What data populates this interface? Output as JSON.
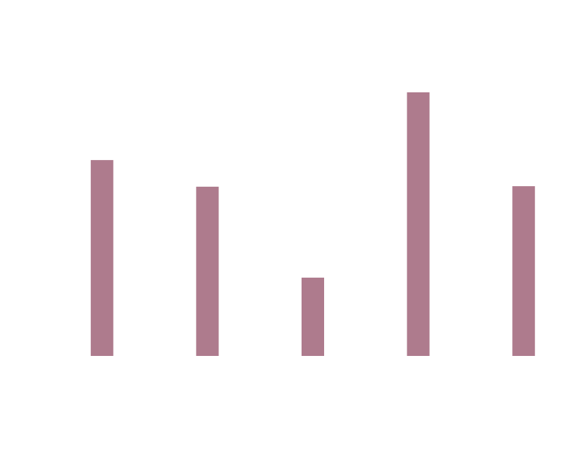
{
  "chart_data": {
    "type": "bar",
    "title": "",
    "xlabel": "",
    "ylabel": "",
    "categories": [
      "",
      "",
      "",
      "",
      ""
    ],
    "values": [
      74.3,
      64.2,
      29.7,
      100,
      64.4
    ],
    "ylim": [
      0,
      100
    ],
    "grid": false,
    "axes_visible": false,
    "bar_color": "#ae7b8d"
  }
}
